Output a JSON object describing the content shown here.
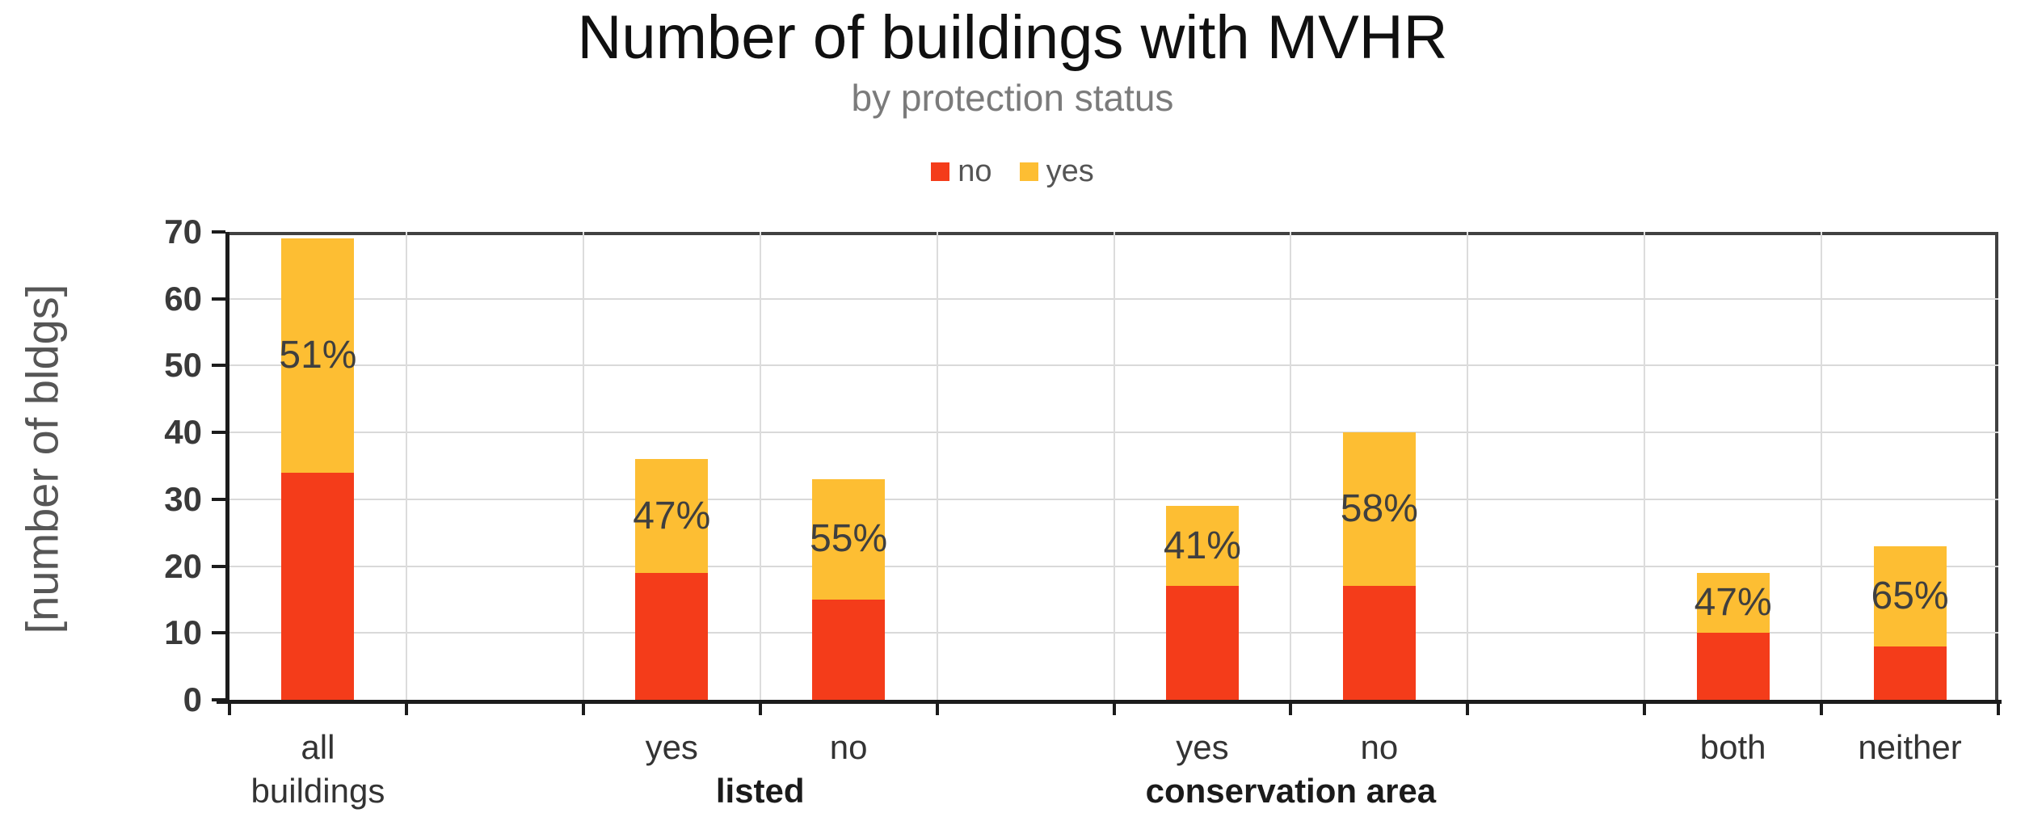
{
  "chart_data": {
    "type": "bar",
    "stacked": true,
    "title": "Number of buildings with MVHR",
    "subtitle": "by protection status",
    "ylabel": "[number of bldgs]",
    "ylim": [
      0,
      70
    ],
    "yticks": [
      0,
      10,
      20,
      30,
      40,
      50,
      60,
      70
    ],
    "grid": true,
    "legend_position": "top-center",
    "total_slots": 10,
    "categories": [
      "all buildings",
      "listed: yes",
      "listed: no",
      "conservation area: yes",
      "conservation area: no",
      "both",
      "neither"
    ],
    "label_lines": [
      [
        "all",
        "buildings"
      ],
      [
        "yes"
      ],
      [
        "no"
      ],
      [
        "yes"
      ],
      [
        "no"
      ],
      [
        "both"
      ],
      [
        "neither"
      ]
    ],
    "category_slots": [
      1,
      3,
      4,
      6,
      7,
      9,
      10
    ],
    "series": [
      {
        "name": "no",
        "color": "#f43c1a",
        "values": [
          34,
          19,
          15,
          17,
          17,
          10,
          8
        ]
      },
      {
        "name": "yes",
        "color": "#fdbe33",
        "values": [
          35,
          17,
          18,
          12,
          23,
          9,
          15
        ]
      }
    ],
    "percent_labels": [
      "51%",
      "47%",
      "55%",
      "41%",
      "58%",
      "47%",
      "65%"
    ],
    "group_labels": [
      {
        "text": "listed",
        "slots": [
          3,
          4
        ]
      },
      {
        "text": "conservation area",
        "slots": [
          6,
          7
        ]
      }
    ]
  }
}
